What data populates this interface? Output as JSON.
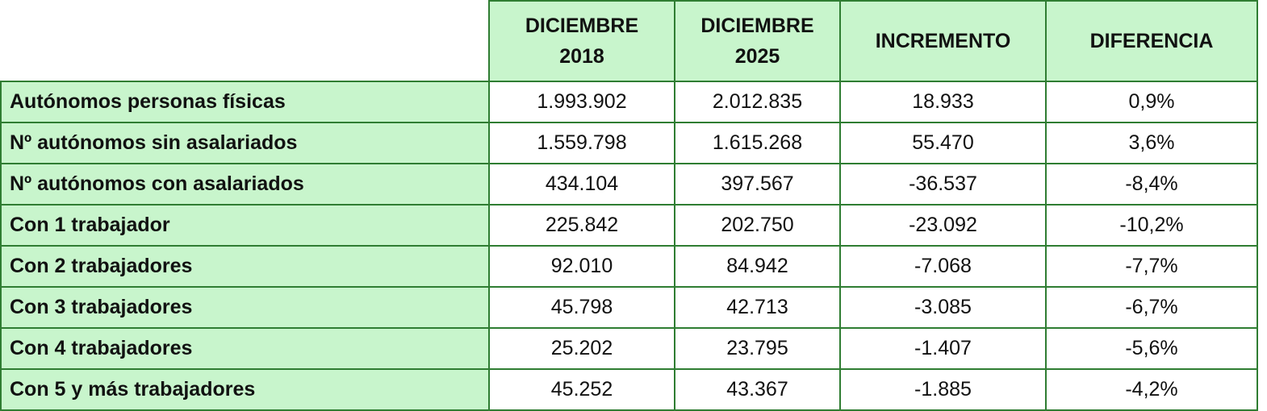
{
  "headers": [
    "",
    "DICIEMBRE 2018",
    "DICIEMBRE 2025",
    "INCREMENTO",
    "DIFERENCIA"
  ],
  "header_lines": [
    [
      "DICIEMBRE",
      "2018"
    ],
    [
      "DICIEMBRE",
      "2025"
    ],
    [
      "INCREMENTO"
    ],
    [
      "DIFERENCIA"
    ]
  ],
  "rows": [
    [
      "Autónomos personas físicas",
      "1.993.902",
      "2.012.835",
      "18.933",
      "0,9%"
    ],
    [
      "Nº autónomos sin asalariados",
      "1.559.798",
      "1.615.268",
      "55.470",
      "3,6%"
    ],
    [
      "Nº autónomos con asalariados",
      "434.104",
      "397.567",
      "-36.537",
      "-8,4%"
    ],
    [
      "Con 1 trabajador",
      "225.842",
      "202.750",
      "-23.092",
      "-10,2%"
    ],
    [
      "Con 2 trabajadores",
      "92.010",
      "84.942",
      "-7.068",
      "-7,7%"
    ],
    [
      "Con 3 trabajadores",
      "45.798",
      "42.713",
      "-3.085",
      "-6,7%"
    ],
    [
      "Con 4 trabajadores",
      "25.202",
      "23.795",
      "-1.407",
      "-5,6%"
    ],
    [
      "Con 5 y más trabajadores",
      "45.252",
      "43.367",
      "-1.885",
      "-4,2%"
    ]
  ],
  "colors": {
    "header_bg": "#c8f5cc",
    "border": "#2f7d32"
  }
}
